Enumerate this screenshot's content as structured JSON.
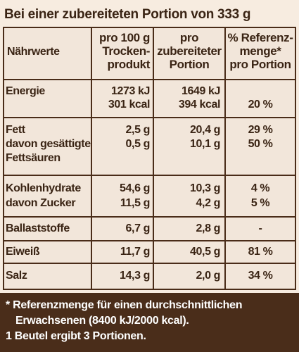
{
  "title": "Bei einer zubereiteten Portion von 333 g",
  "header": {
    "label": "Nährwerte",
    "col1": [
      "pro 100 g",
      "Trocken-",
      "produkt"
    ],
    "col2": [
      "pro",
      "zubereiteter",
      "Portion"
    ],
    "col3": [
      "% Referenz-",
      "menge*",
      "pro Portion"
    ]
  },
  "rows": [
    {
      "labels": [
        "Energie",
        ""
      ],
      "col1": [
        "1273 kJ",
        "301 kcal"
      ],
      "col2": [
        "1649 kJ",
        "394 kcal"
      ],
      "col3": [
        "",
        "20 %"
      ]
    },
    {
      "labels": [
        "Fett",
        "davon gesättigte",
        "Fettsäuren"
      ],
      "col1": [
        "2,5 g",
        "0,5 g"
      ],
      "col2": [
        "20,4 g",
        "10,1 g"
      ],
      "col3": [
        "29 %",
        "50 %"
      ]
    },
    {
      "labels": [
        "Kohlenhydrate",
        "davon Zucker"
      ],
      "col1": [
        "54,6 g",
        "11,5 g"
      ],
      "col2": [
        "10,3 g",
        "4,2 g"
      ],
      "col3": [
        "4 %",
        "5 %"
      ]
    },
    {
      "labels": [
        "Ballaststoffe"
      ],
      "col1": [
        "6,7 g"
      ],
      "col2": [
        "2,8 g"
      ],
      "col3": [
        "-"
      ]
    },
    {
      "labels": [
        "Eiweiß"
      ],
      "col1": [
        "11,7 g"
      ],
      "col2": [
        "40,5 g"
      ],
      "col3": [
        "81 %"
      ]
    },
    {
      "labels": [
        "Salz"
      ],
      "col1": [
        "14,3 g"
      ],
      "col2": [
        "2,0 g"
      ],
      "col3": [
        "34 %"
      ]
    }
  ],
  "footnote": [
    "* Referenzmenge für einen durchschnittlichen",
    "Erwachsenen (8400 kJ/2000 kcal).",
    "1 Beutel ergibt 3 Portionen."
  ],
  "colors": {
    "text": "#3a2414",
    "lines": "#4a2c18",
    "footer_bg": "#4a2d1a",
    "background": "#f7ece0"
  }
}
